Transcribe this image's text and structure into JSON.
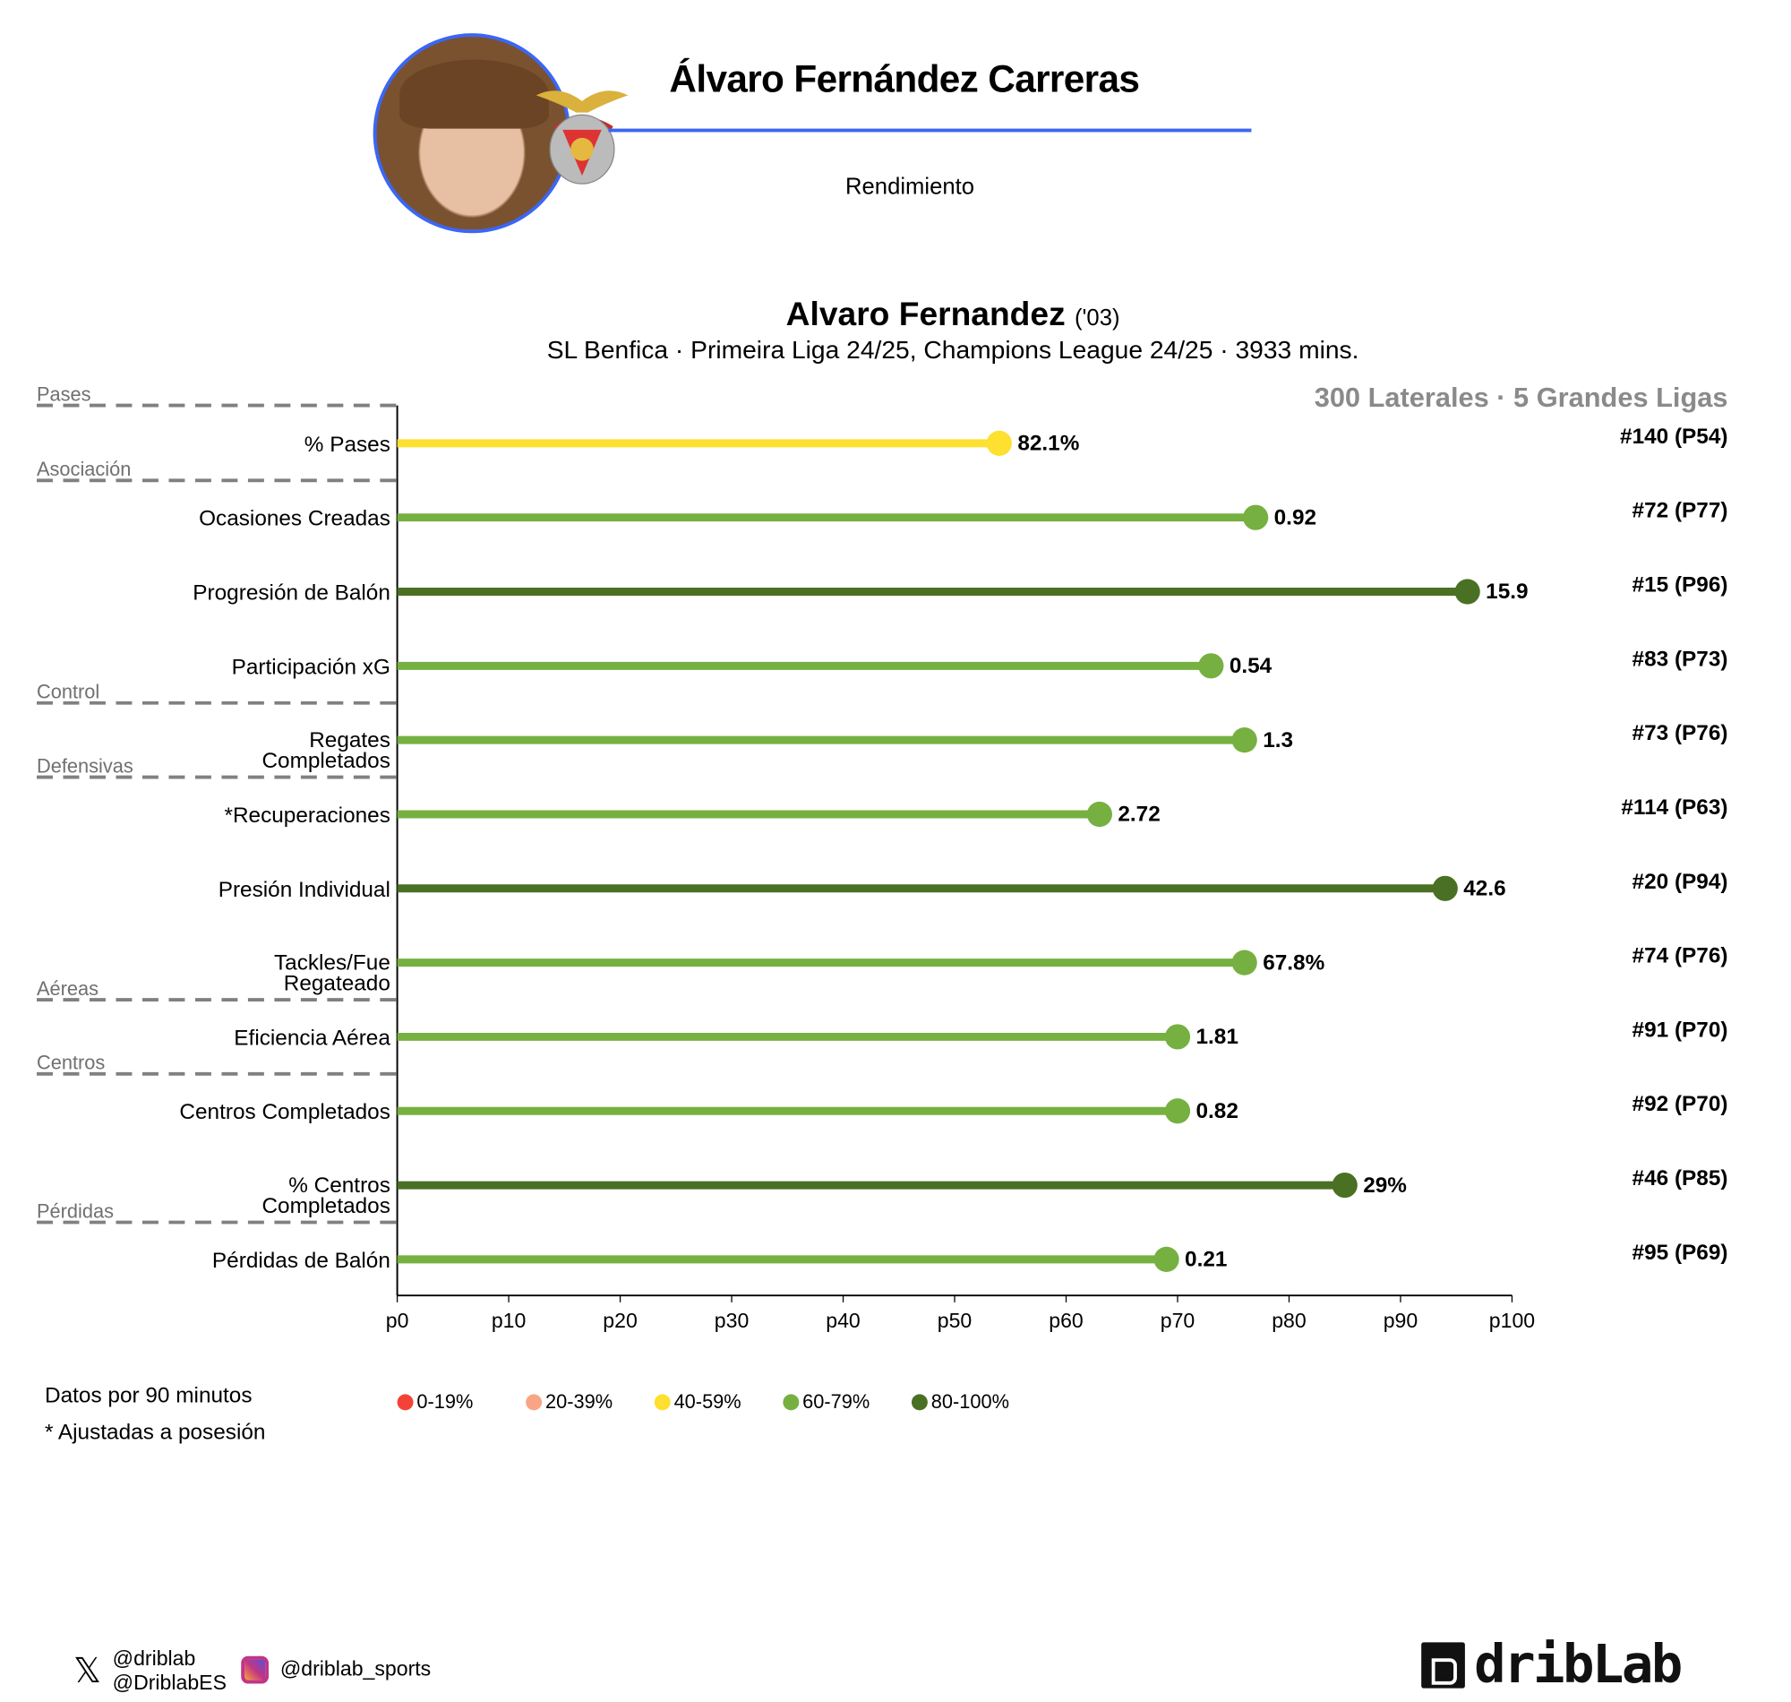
{
  "header": {
    "title": "Álvaro Fernández Carreras",
    "subtitle": "Rendimiento",
    "accent": "#3B66F5"
  },
  "player": {
    "name": "Alvaro Fernandez",
    "year": "('03)",
    "info": "SL Benfica · Primeira Liga 24/25, Champions League 24/25 · 3933 mins."
  },
  "chart_data": {
    "type": "lollipop",
    "sample": "300 Laterales · 5 Grandes Ligas",
    "xlim": [
      0,
      100
    ],
    "xticks": [
      "p0",
      "p10",
      "p20",
      "p30",
      "p40",
      "p50",
      "p60",
      "p70",
      "p80",
      "p90",
      "p100"
    ],
    "groups": [
      {
        "name": "Pases",
        "before": 0
      },
      {
        "name": "Asociación",
        "before": 1
      },
      {
        "name": "Control",
        "before": 4
      },
      {
        "name": "Defensivas",
        "before": 5
      },
      {
        "name": "Aéreas",
        "before": 8
      },
      {
        "name": "Centros",
        "before": 9
      },
      {
        "name": "Pérdidas",
        "before": 11
      }
    ],
    "metrics": [
      {
        "label": [
          "% Pases"
        ],
        "value": "82.1%",
        "percentile": 54,
        "rank": "#140 (P54)"
      },
      {
        "label": [
          "Ocasiones Creadas"
        ],
        "value": "0.92",
        "percentile": 77,
        "rank": "#72 (P77)"
      },
      {
        "label": [
          "Progresión de Balón"
        ],
        "value": "15.9",
        "percentile": 96,
        "rank": "#15 (P96)"
      },
      {
        "label": [
          "Participación xG"
        ],
        "value": "0.54",
        "percentile": 73,
        "rank": "#83 (P73)"
      },
      {
        "label": [
          "Regates",
          "Completados"
        ],
        "value": "1.3",
        "percentile": 76,
        "rank": "#73 (P76)"
      },
      {
        "label": [
          "*Recuperaciones"
        ],
        "value": "2.72",
        "percentile": 63,
        "rank": "#114 (P63)"
      },
      {
        "label": [
          "Presión Individual"
        ],
        "value": "42.6",
        "percentile": 94,
        "rank": "#20 (P94)"
      },
      {
        "label": [
          "Tackles/Fue",
          "Regateado"
        ],
        "value": "67.8%",
        "percentile": 76,
        "rank": "#74 (P76)"
      },
      {
        "label": [
          "Eficiencia Aérea"
        ],
        "value": "1.81",
        "percentile": 70,
        "rank": "#91 (P70)"
      },
      {
        "label": [
          "Centros Completados"
        ],
        "value": "0.82",
        "percentile": 70,
        "rank": "#92 (P70)"
      },
      {
        "label": [
          "% Centros",
          "Completados"
        ],
        "value": "29%",
        "percentile": 85,
        "rank": "#46 (P85)"
      },
      {
        "label": [
          "Pérdidas de Balón"
        ],
        "value": "0.21",
        "percentile": 69,
        "rank": "#95 (P69)"
      }
    ],
    "legend": [
      {
        "label": "0-19%",
        "color": "#F44336"
      },
      {
        "label": "20-39%",
        "color": "#F9A484"
      },
      {
        "label": "40-59%",
        "color": "#FDE030"
      },
      {
        "label": "60-79%",
        "color": "#76B041"
      },
      {
        "label": "80-100%",
        "color": "#4A7023"
      }
    ]
  },
  "notes": [
    "Datos por 90 minutos",
    "* Ajustadas a posesión"
  ],
  "footer": {
    "x_handle1": "@driblab",
    "x_handle2": "@DriblabES",
    "instagram": "@driblab_sports",
    "logo": "dribLab"
  }
}
